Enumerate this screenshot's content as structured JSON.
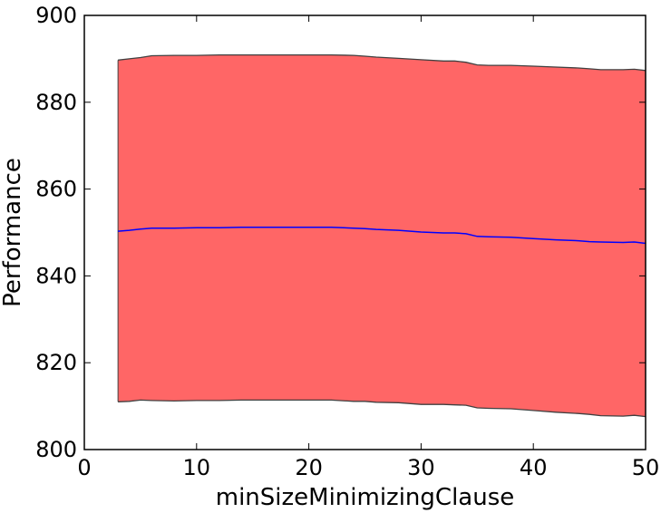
{
  "chart_data": {
    "type": "area",
    "title": "",
    "xlabel": "minSizeMinimizingClause",
    "ylabel": "Performance",
    "xlim": [
      0,
      50
    ],
    "ylim": [
      800,
      900
    ],
    "xticks": [
      0,
      10,
      20,
      30,
      40,
      50
    ],
    "yticks": [
      800,
      820,
      840,
      860,
      880,
      900
    ],
    "xtick_labels": [
      "0",
      "10",
      "20",
      "30",
      "40",
      "50"
    ],
    "ytick_labels": [
      "800",
      "820",
      "840",
      "860",
      "880",
      "900"
    ],
    "grid": false,
    "legend": "none",
    "colors": {
      "band_fill": "#ff6666",
      "band_edge": "#404040",
      "mean_line": "#0000ff"
    },
    "x": [
      3,
      4,
      5,
      6,
      8,
      10,
      12,
      14,
      16,
      18,
      20,
      22,
      24,
      25,
      26,
      28,
      30,
      32,
      33,
      34,
      35,
      36,
      38,
      40,
      42,
      44,
      45,
      46,
      48,
      49,
      50
    ],
    "series": [
      {
        "role": "mean",
        "values": [
          850.3,
          850.5,
          850.8,
          851.0,
          851.0,
          851.1,
          851.1,
          851.2,
          851.2,
          851.2,
          851.2,
          851.2,
          851.0,
          850.9,
          850.7,
          850.5,
          850.1,
          849.9,
          849.9,
          849.7,
          849.1,
          849.0,
          848.9,
          848.6,
          848.3,
          848.1,
          847.9,
          847.8,
          847.7,
          847.8,
          847.5
        ]
      },
      {
        "role": "upper",
        "values": [
          889.7,
          890.0,
          890.3,
          890.7,
          890.8,
          890.8,
          890.9,
          890.9,
          890.9,
          890.9,
          890.9,
          890.9,
          890.8,
          890.6,
          890.4,
          890.1,
          889.8,
          889.5,
          889.5,
          889.2,
          888.6,
          888.5,
          888.5,
          888.3,
          888.1,
          887.9,
          887.7,
          887.5,
          887.5,
          887.6,
          887.3
        ]
      },
      {
        "role": "lower",
        "values": [
          811.0,
          811.1,
          811.4,
          811.3,
          811.2,
          811.3,
          811.3,
          811.4,
          811.4,
          811.4,
          811.4,
          811.4,
          811.1,
          811.1,
          810.9,
          810.8,
          810.4,
          810.4,
          810.3,
          810.2,
          809.6,
          809.5,
          809.4,
          809.0,
          808.6,
          808.3,
          808.1,
          807.8,
          807.7,
          807.9,
          807.6
        ]
      }
    ]
  }
}
